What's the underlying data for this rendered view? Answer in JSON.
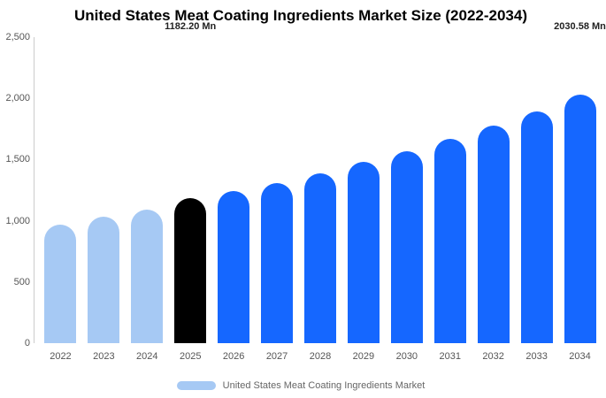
{
  "title": "United States Meat Coating Ingredients Market Size (2022-2034)",
  "legend": {
    "label": "United States Meat Coating Ingredients Market",
    "swatch_color": "#a6c9f4"
  },
  "colors": {
    "historical_bar": "#a6c9f4",
    "base_year_bar": "#000000",
    "forecast_bar": "#1567ff",
    "axis_line": "#cccccc",
    "tick_text": "#555555",
    "annotation_text": "#222222"
  },
  "chart_data": {
    "type": "bar",
    "title": "United States Meat Coating Ingredients Market Size (2022-2034)",
    "xlabel": "",
    "ylabel": "",
    "ylim": [
      0,
      2500
    ],
    "grid": false,
    "legend_position": "bottom",
    "categories": [
      "2022",
      "2023",
      "2024",
      "2025",
      "2026",
      "2027",
      "2028",
      "2029",
      "2030",
      "2031",
      "2032",
      "2033",
      "2034"
    ],
    "values": [
      970,
      1030,
      1090,
      1182.2,
      1240,
      1310,
      1390,
      1480,
      1570,
      1670,
      1780,
      1890,
      2030.58
    ],
    "bar_colors": [
      "#a6c9f4",
      "#a6c9f4",
      "#a6c9f4",
      "#000000",
      "#1567ff",
      "#1567ff",
      "#1567ff",
      "#1567ff",
      "#1567ff",
      "#1567ff",
      "#1567ff",
      "#1567ff",
      "#1567ff"
    ],
    "yticks": [
      {
        "value": 0,
        "label": "0"
      },
      {
        "value": 500,
        "label": "500"
      },
      {
        "value": 1000,
        "label": "1,000"
      },
      {
        "value": 1500,
        "label": "1,500"
      },
      {
        "value": 2000,
        "label": "2,000"
      },
      {
        "value": 2500,
        "label": "2,500"
      }
    ],
    "annotations": [
      {
        "index": 3,
        "text": "1182.20 Mn"
      },
      {
        "index": 12,
        "text": "2030.58 Mn"
      }
    ],
    "series_name": "United States Meat Coating Ingredients Market"
  }
}
